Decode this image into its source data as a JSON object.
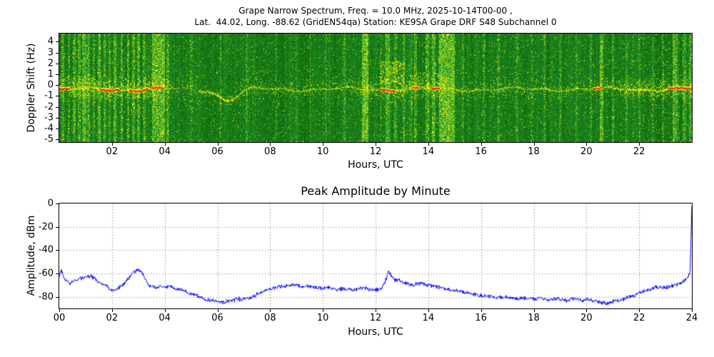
{
  "page": {
    "background": "#ffffff"
  },
  "chart_data": [
    {
      "type": "heatmap",
      "title_line1": "Grape Narrow Spectrum, Freq. = 10.0 MHz, 2025-10-14T00-00 ,",
      "title_line2": "Lat.  44.02, Long. -88.62 (GridEN54qa) Station: KE9SA Grape DRF S48 Subchannel 0",
      "xlabel": "Hours, UTC",
      "ylabel": "Doppler Shift (Hz)",
      "xlim": [
        0,
        24
      ],
      "ylim": [
        -5.25,
        4.75
      ],
      "x_tick_labels": [
        "02",
        "04",
        "06",
        "08",
        "10",
        "12",
        "14",
        "16",
        "18",
        "20",
        "22"
      ],
      "x_tick_hours": [
        2,
        4,
        6,
        8,
        10,
        12,
        14,
        16,
        18,
        20,
        22
      ],
      "y_tick_labels": [
        "4",
        "3",
        "2",
        "1",
        "0",
        "-1",
        "-2",
        "-3",
        "-4",
        "-5"
      ],
      "y_tick_values": [
        4,
        3,
        2,
        1,
        0,
        -1,
        -2,
        -3,
        -4,
        -5
      ],
      "palette": {
        "background_green_dark": "#086008",
        "background_green_light": "#2a9a2a",
        "speckle_yellow_green": "#b8d22a",
        "speckle_yellow": "#ffff00",
        "carrier_bright_yellow": "#ffff50",
        "carrier_yellow": "#e6e600",
        "carrier_orange": "#ffa000",
        "carrier_red": "#ff2000"
      },
      "carrier": {
        "base_freq_hz": -0.35,
        "dip": {
          "center_hour": 6.4,
          "depth_hz": 1.0,
          "width_hour": 0.5
        },
        "segments": [
          {
            "from": 0.0,
            "to": 0.4,
            "style": "red"
          },
          {
            "from": 0.4,
            "to": 1.55,
            "style": "yellow"
          },
          {
            "from": 1.55,
            "to": 2.3,
            "style": "red"
          },
          {
            "from": 2.3,
            "to": 2.65,
            "style": "yellow"
          },
          {
            "from": 2.65,
            "to": 3.35,
            "style": "red"
          },
          {
            "from": 3.35,
            "to": 3.5,
            "style": "yellow"
          },
          {
            "from": 3.5,
            "to": 3.95,
            "style": "red"
          },
          {
            "from": 3.95,
            "to": 5.3,
            "style": "faint"
          },
          {
            "from": 5.3,
            "to": 7.0,
            "style": "yellow"
          },
          {
            "from": 7.0,
            "to": 12.2,
            "style": "yellow-thin"
          },
          {
            "from": 12.2,
            "to": 12.75,
            "style": "red"
          },
          {
            "from": 12.75,
            "to": 13.4,
            "style": "yellow"
          },
          {
            "from": 13.4,
            "to": 13.65,
            "style": "red"
          },
          {
            "from": 13.65,
            "to": 14.1,
            "style": "yellow"
          },
          {
            "from": 14.1,
            "to": 14.45,
            "style": "red"
          },
          {
            "from": 14.45,
            "to": 20.25,
            "style": "yellow-thin"
          },
          {
            "from": 20.25,
            "to": 20.6,
            "style": "red"
          },
          {
            "from": 20.6,
            "to": 23.1,
            "style": "yellow"
          },
          {
            "from": 23.1,
            "to": 24.0,
            "style": "red"
          }
        ]
      },
      "halo_regions": [
        {
          "from": 0,
          "to": 4.2,
          "amount": 0.22
        },
        {
          "from": 4.2,
          "to": 11.4,
          "amount": 0.09
        },
        {
          "from": 11.4,
          "to": 14.8,
          "amount": 0.2
        },
        {
          "from": 14.8,
          "to": 20.9,
          "amount": 0.09
        },
        {
          "from": 20.9,
          "to": 24,
          "amount": 0.16
        }
      ],
      "events": [
        {
          "hour": 0.12,
          "width": 0.05,
          "strength": 0.5
        },
        {
          "hour": 0.35,
          "width": 0.04,
          "strength": 0.4
        },
        {
          "hour": 0.55,
          "width": 0.04,
          "strength": 0.45
        },
        {
          "hour": 0.75,
          "width": 0.05,
          "strength": 0.5
        },
        {
          "hour": 0.95,
          "width": 0.06,
          "strength": 0.6
        },
        {
          "hour": 1.1,
          "width": 0.04,
          "strength": 0.5
        },
        {
          "hour": 1.3,
          "width": 0.04,
          "strength": 0.4
        },
        {
          "hour": 1.5,
          "width": 0.05,
          "strength": 0.55
        },
        {
          "hour": 1.7,
          "width": 0.04,
          "strength": 0.45
        },
        {
          "hour": 1.9,
          "width": 0.04,
          "strength": 0.4
        },
        {
          "hour": 2.1,
          "width": 0.05,
          "strength": 0.5
        },
        {
          "hour": 2.35,
          "width": 0.04,
          "strength": 0.45
        },
        {
          "hour": 2.6,
          "width": 0.05,
          "strength": 0.55
        },
        {
          "hour": 2.8,
          "width": 0.04,
          "strength": 0.5
        },
        {
          "hour": 3.0,
          "width": 0.06,
          "strength": 0.6
        },
        {
          "hour": 3.2,
          "width": 0.05,
          "strength": 0.5
        },
        {
          "hour": 3.75,
          "width": 0.45,
          "strength": 0.75
        },
        {
          "hour": 4.1,
          "width": 0.05,
          "strength": 0.4
        },
        {
          "hour": 5.0,
          "width": 0.04,
          "strength": 0.25
        },
        {
          "hour": 6.1,
          "width": 0.04,
          "strength": 0.3
        },
        {
          "hour": 7.1,
          "width": 0.04,
          "strength": 0.3
        },
        {
          "hour": 8.2,
          "width": 0.03,
          "strength": 0.25
        },
        {
          "hour": 9.0,
          "width": 0.03,
          "strength": 0.2
        },
        {
          "hour": 10.1,
          "width": 0.03,
          "strength": 0.2
        },
        {
          "hour": 10.8,
          "width": 0.03,
          "strength": 0.25
        },
        {
          "hour": 11.6,
          "width": 0.2,
          "strength": 0.85
        },
        {
          "hour": 12.45,
          "width": 0.12,
          "strength": 0.5
        },
        {
          "hour": 12.75,
          "width": 0.05,
          "strength": 0.4
        },
        {
          "hour": 13.05,
          "width": 0.04,
          "strength": 0.4
        },
        {
          "hour": 13.5,
          "width": 0.05,
          "strength": 0.45
        },
        {
          "hour": 13.95,
          "width": 0.06,
          "strength": 0.5
        },
        {
          "hour": 14.2,
          "width": 0.08,
          "strength": 0.55
        },
        {
          "hour": 14.7,
          "width": 0.55,
          "strength": 0.75
        },
        {
          "hour": 15.3,
          "width": 0.04,
          "strength": 0.3
        },
        {
          "hour": 16.1,
          "width": 0.04,
          "strength": 0.35
        },
        {
          "hour": 16.65,
          "width": 0.04,
          "strength": 0.3
        },
        {
          "hour": 17.35,
          "width": 0.04,
          "strength": 0.3
        },
        {
          "hour": 17.9,
          "width": 0.03,
          "strength": 0.25
        },
        {
          "hour": 18.4,
          "width": 0.03,
          "strength": 0.3
        },
        {
          "hour": 19.0,
          "width": 0.03,
          "strength": 0.25
        },
        {
          "hour": 19.6,
          "width": 0.03,
          "strength": 0.25
        },
        {
          "hour": 20.15,
          "width": 0.03,
          "strength": 0.3
        },
        {
          "hour": 20.55,
          "width": 0.08,
          "strength": 0.7
        },
        {
          "hour": 21.0,
          "width": 0.04,
          "strength": 0.35
        },
        {
          "hour": 21.5,
          "width": 0.03,
          "strength": 0.3
        },
        {
          "hour": 22.0,
          "width": 0.04,
          "strength": 0.3
        },
        {
          "hour": 22.5,
          "width": 0.03,
          "strength": 0.3
        },
        {
          "hour": 22.9,
          "width": 0.03,
          "strength": 0.3
        },
        {
          "hour": 23.35,
          "width": 0.12,
          "strength": 0.55
        },
        {
          "hour": 23.7,
          "width": 0.06,
          "strength": 0.4
        },
        {
          "hour": 23.95,
          "width": 0.08,
          "strength": 0.5
        }
      ],
      "blobs": [
        {
          "x_from": 12.15,
          "x_to": 13.1,
          "y_from": 0.1,
          "y_to": 2.2,
          "density": 0.55
        },
        {
          "x_from": 13.3,
          "x_to": 14.6,
          "y_from": -0.1,
          "y_to": 1.2,
          "density": 0.22
        },
        {
          "x_from": 0.0,
          "x_to": 4.0,
          "y_from": -1.3,
          "y_to": 0.9,
          "density": 0.12
        },
        {
          "x_from": 21.3,
          "x_to": 24.0,
          "y_from": -1.1,
          "y_to": 0.7,
          "density": 0.1
        }
      ]
    },
    {
      "type": "line",
      "title": "Peak Amplitude by Minute",
      "xlabel": "Hours, UTC",
      "ylabel": "Amplitude, dBm",
      "xlim": [
        0,
        24
      ],
      "ylim": [
        -90,
        0
      ],
      "x_tick_labels": [
        "00",
        "02",
        "04",
        "06",
        "08",
        "10",
        "12",
        "14",
        "16",
        "18",
        "20",
        "22",
        "24"
      ],
      "x_tick_hours": [
        0,
        2,
        4,
        6,
        8,
        10,
        12,
        14,
        16,
        18,
        20,
        22,
        24
      ],
      "y_tick_labels": [
        "0",
        "-20",
        "-40",
        "-60",
        "-80"
      ],
      "y_tick_values": [
        0,
        -20,
        -40,
        -60,
        -80
      ],
      "line_color": "#0000ff",
      "grid_color": "#666666",
      "grid_style": "dotted",
      "keypoints_hour_dbm": [
        [
          0.0,
          -63
        ],
        [
          0.07,
          -57
        ],
        [
          0.2,
          -65
        ],
        [
          0.4,
          -68
        ],
        [
          0.6,
          -66
        ],
        [
          0.8,
          -64
        ],
        [
          1.0,
          -63
        ],
        [
          1.2,
          -62
        ],
        [
          1.4,
          -66
        ],
        [
          1.6,
          -69
        ],
        [
          1.8,
          -70
        ],
        [
          1.95,
          -75
        ],
        [
          2.1,
          -74
        ],
        [
          2.3,
          -72
        ],
        [
          2.5,
          -68
        ],
        [
          2.7,
          -62
        ],
        [
          2.85,
          -59
        ],
        [
          3.0,
          -57
        ],
        [
          3.1,
          -58
        ],
        [
          3.25,
          -64
        ],
        [
          3.4,
          -70
        ],
        [
          3.6,
          -72
        ],
        [
          3.8,
          -71
        ],
        [
          4.0,
          -72
        ],
        [
          4.2,
          -71
        ],
        [
          4.4,
          -73
        ],
        [
          4.6,
          -74
        ],
        [
          4.8,
          -76
        ],
        [
          5.0,
          -78
        ],
        [
          5.2,
          -79
        ],
        [
          5.4,
          -81
        ],
        [
          5.6,
          -83
        ],
        [
          5.8,
          -83
        ],
        [
          6.0,
          -84
        ],
        [
          6.2,
          -85
        ],
        [
          6.4,
          -84
        ],
        [
          6.6,
          -83
        ],
        [
          6.8,
          -82
        ],
        [
          7.0,
          -82
        ],
        [
          7.2,
          -81
        ],
        [
          7.4,
          -79
        ],
        [
          7.6,
          -77
        ],
        [
          7.8,
          -75
        ],
        [
          8.0,
          -74
        ],
        [
          8.2,
          -72
        ],
        [
          8.4,
          -71
        ],
        [
          8.6,
          -71
        ],
        [
          8.8,
          -70
        ],
        [
          9.0,
          -70
        ],
        [
          9.2,
          -72
        ],
        [
          9.4,
          -71
        ],
        [
          9.6,
          -71
        ],
        [
          9.8,
          -72
        ],
        [
          10.0,
          -73
        ],
        [
          10.2,
          -72
        ],
        [
          10.4,
          -73
        ],
        [
          10.6,
          -74
        ],
        [
          10.8,
          -73
        ],
        [
          11.0,
          -73
        ],
        [
          11.2,
          -74
        ],
        [
          11.4,
          -73
        ],
        [
          11.6,
          -72
        ],
        [
          11.8,
          -74
        ],
        [
          12.0,
          -74
        ],
        [
          12.2,
          -73
        ],
        [
          12.35,
          -68
        ],
        [
          12.5,
          -58
        ],
        [
          12.6,
          -62
        ],
        [
          12.75,
          -66
        ],
        [
          12.9,
          -66
        ],
        [
          13.0,
          -67
        ],
        [
          13.2,
          -69
        ],
        [
          13.4,
          -70
        ],
        [
          13.6,
          -68
        ],
        [
          13.8,
          -69
        ],
        [
          14.0,
          -70
        ],
        [
          14.2,
          -71
        ],
        [
          14.4,
          -72
        ],
        [
          14.6,
          -73
        ],
        [
          14.8,
          -74
        ],
        [
          15.0,
          -75
        ],
        [
          15.2,
          -75
        ],
        [
          15.4,
          -76
        ],
        [
          15.6,
          -77
        ],
        [
          15.8,
          -78
        ],
        [
          16.0,
          -79
        ],
        [
          16.2,
          -79
        ],
        [
          16.4,
          -80
        ],
        [
          16.6,
          -81
        ],
        [
          16.8,
          -80
        ],
        [
          17.0,
          -80
        ],
        [
          17.2,
          -81
        ],
        [
          17.4,
          -82
        ],
        [
          17.6,
          -81
        ],
        [
          17.8,
          -82
        ],
        [
          18.0,
          -82
        ],
        [
          18.2,
          -81
        ],
        [
          18.4,
          -82
        ],
        [
          18.6,
          -83
        ],
        [
          18.8,
          -82
        ],
        [
          19.0,
          -82
        ],
        [
          19.2,
          -83
        ],
        [
          19.4,
          -82
        ],
        [
          19.6,
          -82
        ],
        [
          19.8,
          -83
        ],
        [
          20.0,
          -82
        ],
        [
          20.2,
          -83
        ],
        [
          20.4,
          -84
        ],
        [
          20.6,
          -85
        ],
        [
          20.8,
          -86
        ],
        [
          21.0,
          -84
        ],
        [
          21.2,
          -83
        ],
        [
          21.4,
          -82
        ],
        [
          21.6,
          -80
        ],
        [
          21.8,
          -79
        ],
        [
          22.0,
          -77
        ],
        [
          22.2,
          -75
        ],
        [
          22.4,
          -74
        ],
        [
          22.6,
          -72
        ],
        [
          22.8,
          -72
        ],
        [
          23.0,
          -72
        ],
        [
          23.2,
          -71
        ],
        [
          23.4,
          -70
        ],
        [
          23.6,
          -68
        ],
        [
          23.8,
          -65
        ],
        [
          23.93,
          -60
        ],
        [
          24.0,
          -2
        ]
      ]
    }
  ]
}
